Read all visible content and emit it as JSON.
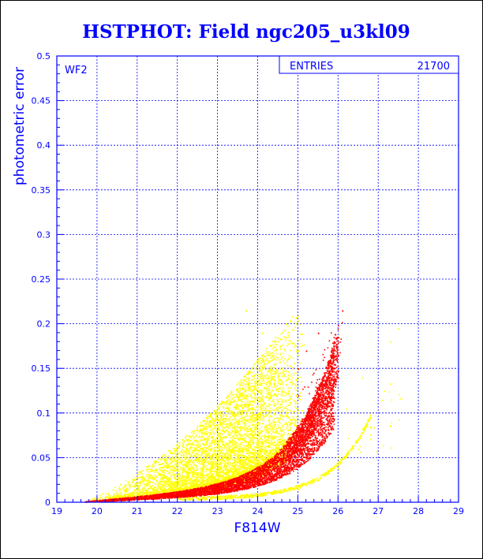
{
  "chart_data": {
    "type": "scatter",
    "title": "HSTPHOT: Field ngc205_u3kl09",
    "xlabel": "F814W",
    "ylabel": "photometric error",
    "panel_label": "WF2",
    "stats_box": {
      "label": "ENTRIES",
      "value": "21700"
    },
    "xlim": [
      19,
      29
    ],
    "ylim": [
      0,
      0.5
    ],
    "x_ticks": [
      "19",
      "20",
      "21",
      "22",
      "23",
      "24",
      "25",
      "26",
      "27",
      "28",
      "29"
    ],
    "y_ticks": [
      "0",
      "0.05",
      "0.1",
      "0.15",
      "0.2",
      "0.25",
      "0.3",
      "0.35",
      "0.4",
      "0.45",
      "0.5"
    ],
    "grid": true,
    "series": [
      {
        "color": "#ffff00",
        "description_points": [
          [
            19.9,
            0.003
          ],
          [
            20.5,
            0.005
          ],
          [
            21.0,
            0.01
          ],
          [
            21.5,
            0.02
          ],
          [
            22.0,
            0.035
          ],
          [
            22.5,
            0.05
          ],
          [
            23.0,
            0.065
          ],
          [
            23.5,
            0.08
          ],
          [
            24.0,
            0.1
          ],
          [
            24.5,
            0.125
          ],
          [
            25.0,
            0.17
          ],
          [
            22.2,
            0.06
          ],
          [
            22.8,
            0.09
          ],
          [
            23.3,
            0.11
          ],
          [
            23.8,
            0.13
          ],
          [
            24.3,
            0.15
          ],
          [
            24.7,
            0.185
          ],
          [
            23.7,
            0.215
          ],
          [
            24.1,
            0.19
          ],
          [
            21.7,
            0.045
          ],
          [
            21.3,
            0.03
          ],
          [
            20.8,
            0.018
          ],
          [
            23.0,
            0.004
          ],
          [
            24.0,
            0.008
          ],
          [
            25.0,
            0.015
          ],
          [
            25.5,
            0.025
          ],
          [
            26.0,
            0.038
          ],
          [
            26.5,
            0.06
          ],
          [
            26.8,
            0.085
          ],
          [
            27.1,
            0.115
          ],
          [
            27.5,
            0.195
          ],
          [
            27.3,
            0.18
          ],
          [
            26.6,
            0.14
          ],
          [
            26.2,
            0.105
          ]
        ]
      },
      {
        "color": "#ff0000",
        "description_points": [
          [
            19.7,
            0.001
          ],
          [
            20.5,
            0.003
          ],
          [
            21.5,
            0.008
          ],
          [
            22.5,
            0.015
          ],
          [
            23.0,
            0.02
          ],
          [
            23.5,
            0.028
          ],
          [
            24.0,
            0.038
          ],
          [
            24.5,
            0.055
          ],
          [
            25.0,
            0.075
          ],
          [
            25.3,
            0.095
          ],
          [
            25.6,
            0.13
          ],
          [
            25.8,
            0.16
          ],
          [
            26.0,
            0.185
          ],
          [
            26.1,
            0.215
          ],
          [
            25.5,
            0.19
          ],
          [
            25.2,
            0.17
          ],
          [
            25.0,
            0.15
          ]
        ]
      }
    ]
  },
  "colors": {
    "axis": "#0000ff",
    "title": "#0000ff",
    "grid": "#0000ff",
    "yellow_points": "#ffff00",
    "red_points": "#ff0000"
  }
}
